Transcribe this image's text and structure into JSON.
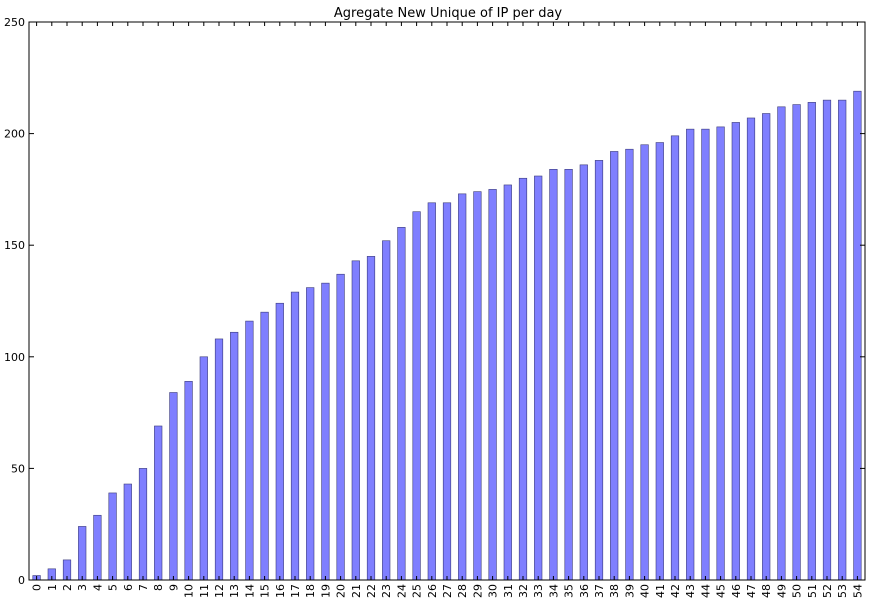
{
  "chart_data": {
    "type": "bar",
    "title": "Agregate New Unique of IP per day",
    "xlabel": "",
    "ylabel": "",
    "ylim": [
      0,
      250
    ],
    "yticks": [
      0,
      50,
      100,
      150,
      200,
      250
    ],
    "grid": false,
    "bar_color": "#7f7fff",
    "bar_edge_color": "#3a3a7a",
    "categories": [
      "0",
      "1",
      "2",
      "3",
      "4",
      "5",
      "6",
      "7",
      "8",
      "9",
      "10",
      "11",
      "12",
      "13",
      "14",
      "15",
      "16",
      "17",
      "18",
      "19",
      "20",
      "21",
      "22",
      "23",
      "24",
      "25",
      "26",
      "27",
      "28",
      "29",
      "30",
      "31",
      "32",
      "33",
      "34",
      "35",
      "36",
      "37",
      "38",
      "39",
      "40",
      "41",
      "42",
      "43",
      "44",
      "45",
      "46",
      "47",
      "48",
      "49",
      "50",
      "51",
      "52",
      "53",
      "54"
    ],
    "values": [
      2,
      5,
      9,
      24,
      29,
      39,
      43,
      50,
      69,
      84,
      89,
      100,
      108,
      111,
      116,
      120,
      124,
      129,
      131,
      133,
      137,
      143,
      145,
      152,
      158,
      165,
      169,
      169,
      173,
      174,
      175,
      177,
      180,
      181,
      184,
      184,
      186,
      188,
      192,
      193,
      195,
      196,
      199,
      202,
      202,
      203,
      205,
      207,
      209,
      212,
      213,
      214,
      215,
      215,
      219
    ]
  }
}
